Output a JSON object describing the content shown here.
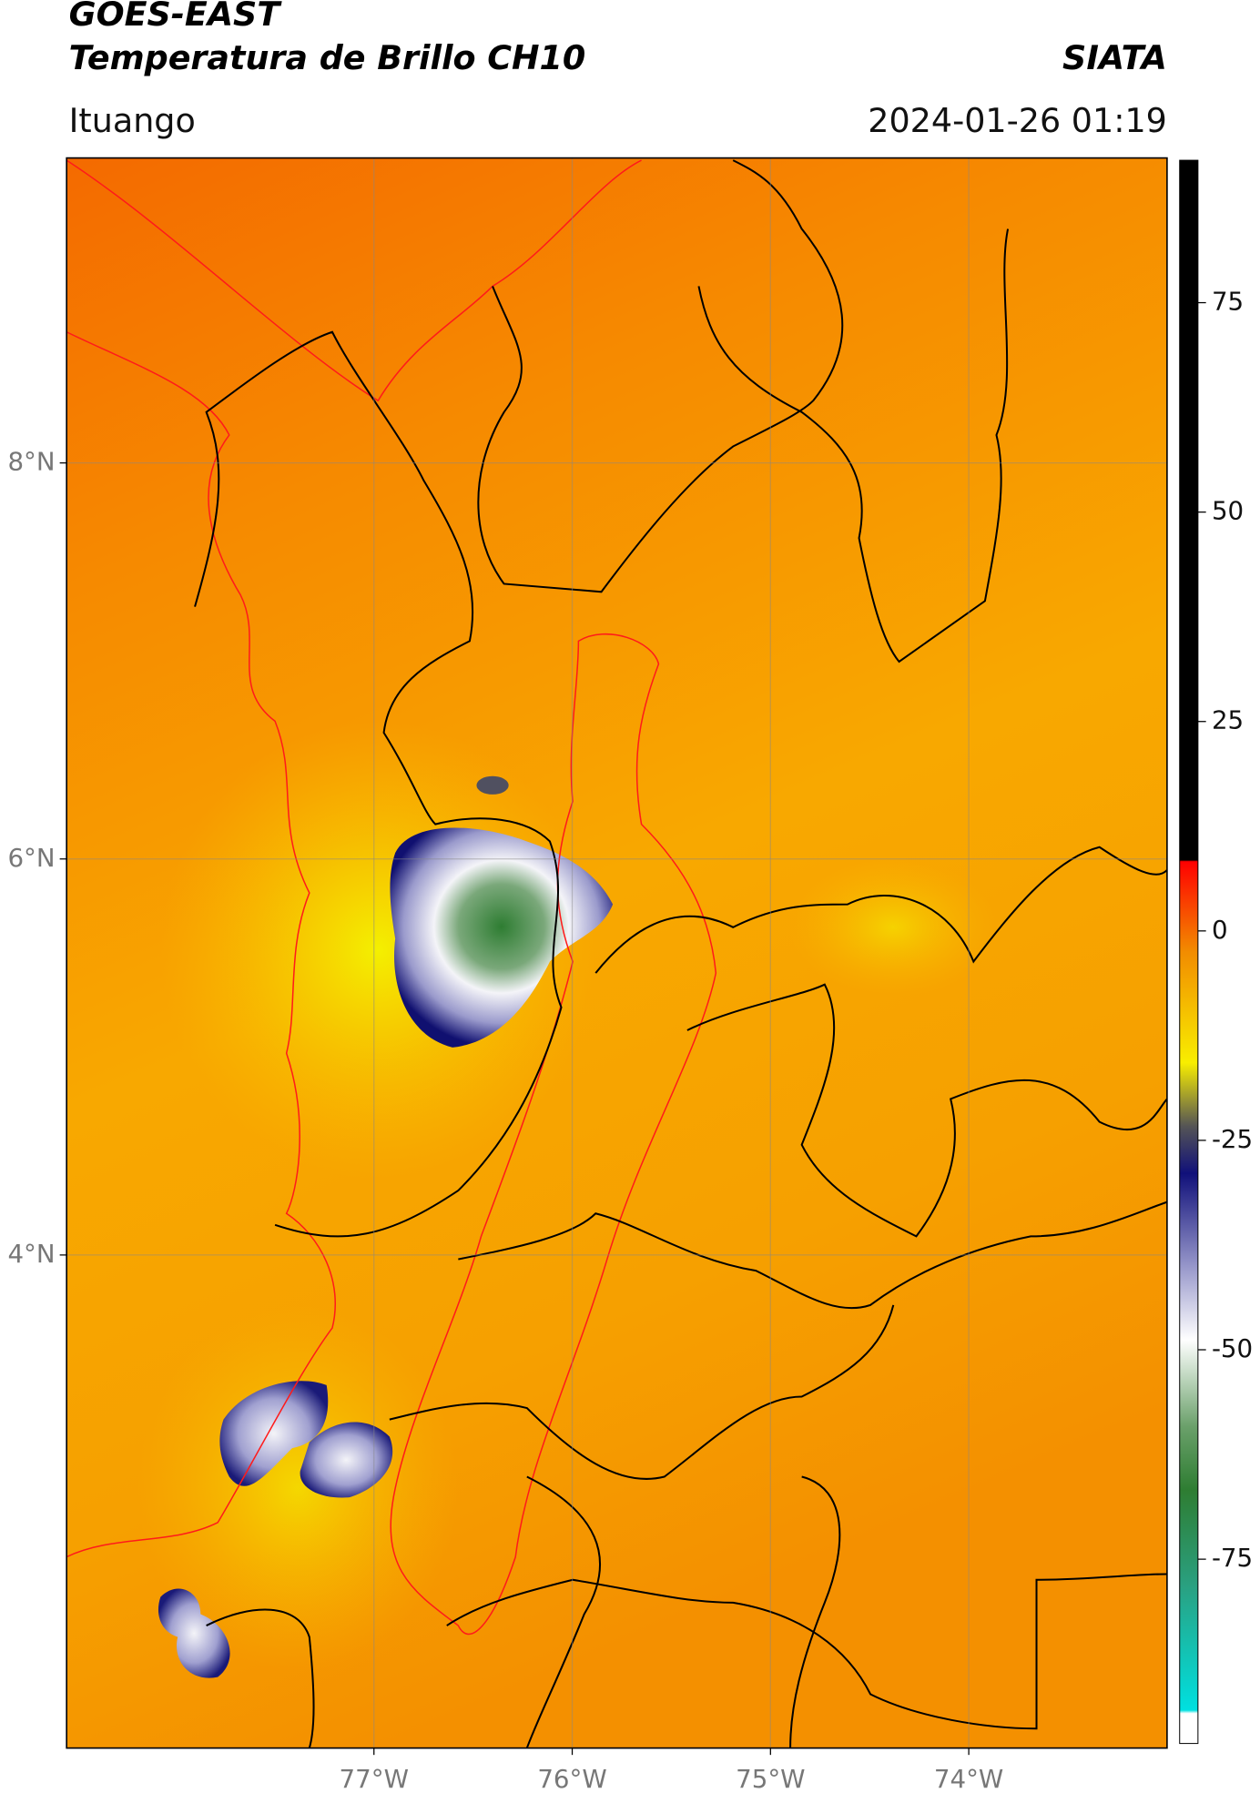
{
  "header": {
    "title": "GOES-EAST",
    "subtitle": "Temperatura de Brillo CH10",
    "agency": "SIATA",
    "location": "Ituango",
    "datetime": "2024-01-26 01:19"
  },
  "chart_data": {
    "type": "map",
    "xlim": [
      -78.55,
      -73.0
    ],
    "ylim": [
      1.51,
      9.54
    ],
    "xticks": [
      {
        "value": -77,
        "label": "77°W"
      },
      {
        "value": -76,
        "label": "76°W"
      },
      {
        "value": -75,
        "label": "75°W"
      },
      {
        "value": -74,
        "label": "74°W"
      }
    ],
    "yticks": [
      {
        "value": 8,
        "label": "8°N"
      },
      {
        "value": 6,
        "label": "6°N"
      },
      {
        "value": 4,
        "label": "4°N"
      }
    ],
    "grid": true,
    "colorbar": {
      "lim": [
        -97,
        92
      ],
      "ticks": [
        75,
        50,
        25,
        0,
        -25,
        -50,
        -75
      ]
    }
  }
}
